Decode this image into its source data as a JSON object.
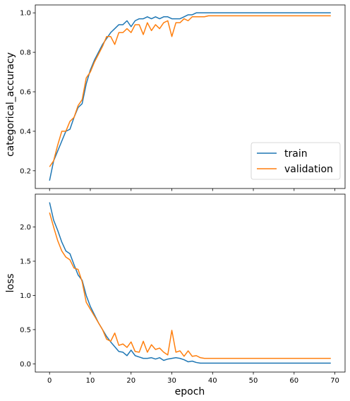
{
  "chart_data": [
    {
      "type": "line",
      "title": "",
      "xlabel": "",
      "ylabel": "categorical_accuracy",
      "xlim": [
        -3.5,
        72.5
      ],
      "ylim": [
        0.11,
        1.04
      ],
      "xticks": [
        0,
        10,
        20,
        30,
        40,
        50,
        60,
        70
      ],
      "xtick_labels_shown": false,
      "yticks": [
        0.2,
        0.4,
        0.6,
        0.8,
        1.0
      ],
      "ytick_labels": [
        "0.2",
        "0.4",
        "0.6",
        "0.8",
        "1.0"
      ],
      "grid": false,
      "legend": "lower-right",
      "series": [
        {
          "name": "train",
          "color": "#1f77b4",
          "x": [
            0,
            1,
            2,
            3,
            4,
            5,
            6,
            7,
            8,
            9,
            10,
            11,
            12,
            13,
            14,
            15,
            16,
            17,
            18,
            19,
            20,
            21,
            22,
            23,
            24,
            25,
            26,
            27,
            28,
            29,
            30,
            31,
            32,
            33,
            34,
            35,
            36,
            37,
            38,
            39,
            40,
            41,
            42,
            43,
            44,
            45,
            46,
            47,
            48,
            49,
            50,
            51,
            52,
            53,
            54,
            55,
            56,
            57,
            58,
            59,
            60,
            61,
            62,
            63,
            64,
            65,
            66,
            67,
            68,
            69
          ],
          "values": [
            0.15,
            0.25,
            0.3,
            0.35,
            0.4,
            0.41,
            0.47,
            0.52,
            0.54,
            0.64,
            0.71,
            0.76,
            0.8,
            0.84,
            0.87,
            0.9,
            0.92,
            0.94,
            0.94,
            0.96,
            0.93,
            0.96,
            0.97,
            0.97,
            0.98,
            0.97,
            0.98,
            0.97,
            0.98,
            0.98,
            0.97,
            0.97,
            0.97,
            0.98,
            0.99,
            0.99,
            1.0,
            1.0,
            1.0,
            1.0,
            1.0,
            1.0,
            1.0,
            1.0,
            1.0,
            1.0,
            1.0,
            1.0,
            1.0,
            1.0,
            1.0,
            1.0,
            1.0,
            1.0,
            1.0,
            1.0,
            1.0,
            1.0,
            1.0,
            1.0,
            1.0,
            1.0,
            1.0,
            1.0,
            1.0,
            1.0,
            1.0,
            1.0,
            1.0,
            1.0
          ]
        },
        {
          "name": "validation",
          "color": "#ff7f0e",
          "x": [
            0,
            1,
            2,
            3,
            4,
            5,
            6,
            7,
            8,
            9,
            10,
            11,
            12,
            13,
            14,
            15,
            16,
            17,
            18,
            19,
            20,
            21,
            22,
            23,
            24,
            25,
            26,
            27,
            28,
            29,
            30,
            31,
            32,
            33,
            34,
            35,
            36,
            37,
            38,
            39,
            40,
            41,
            42,
            43,
            44,
            45,
            46,
            47,
            48,
            49,
            50,
            51,
            52,
            53,
            54,
            55,
            56,
            57,
            58,
            59,
            60,
            61,
            62,
            63,
            64,
            65,
            66,
            67,
            68,
            69
          ],
          "values": [
            0.22,
            0.25,
            0.33,
            0.4,
            0.4,
            0.45,
            0.47,
            0.53,
            0.56,
            0.67,
            0.7,
            0.75,
            0.79,
            0.83,
            0.88,
            0.88,
            0.84,
            0.9,
            0.9,
            0.92,
            0.9,
            0.94,
            0.94,
            0.89,
            0.95,
            0.91,
            0.94,
            0.92,
            0.95,
            0.96,
            0.88,
            0.95,
            0.95,
            0.97,
            0.96,
            0.98,
            0.98,
            0.98,
            0.98,
            0.985,
            0.985,
            0.985,
            0.985,
            0.985,
            0.985,
            0.985,
            0.985,
            0.985,
            0.985,
            0.985,
            0.985,
            0.985,
            0.985,
            0.985,
            0.985,
            0.985,
            0.985,
            0.985,
            0.985,
            0.985,
            0.985,
            0.985,
            0.985,
            0.985,
            0.985,
            0.985,
            0.985,
            0.985,
            0.985,
            0.985
          ]
        }
      ]
    },
    {
      "type": "line",
      "title": "",
      "xlabel": "epoch",
      "ylabel": "loss",
      "xlim": [
        -3.5,
        72.5
      ],
      "ylim": [
        -0.12,
        2.48
      ],
      "xticks": [
        0,
        10,
        20,
        30,
        40,
        50,
        60,
        70
      ],
      "xtick_labels": [
        "0",
        "10",
        "20",
        "30",
        "40",
        "50",
        "60",
        "70"
      ],
      "yticks": [
        0.0,
        0.5,
        1.0,
        1.5,
        2.0
      ],
      "ytick_labels": [
        "0.0",
        "0.5",
        "1.0",
        "1.5",
        "2.0"
      ],
      "grid": false,
      "legend": "none",
      "series": [
        {
          "name": "",
          "color": "#1f77b4",
          "x": [
            0,
            1,
            2,
            3,
            4,
            5,
            6,
            7,
            8,
            9,
            10,
            11,
            12,
            13,
            14,
            15,
            16,
            17,
            18,
            19,
            20,
            21,
            22,
            23,
            24,
            25,
            26,
            27,
            28,
            29,
            30,
            31,
            32,
            33,
            34,
            35,
            36,
            37,
            38,
            39,
            40,
            41,
            42,
            43,
            44,
            45,
            46,
            47,
            48,
            49,
            50,
            51,
            52,
            53,
            54,
            55,
            56,
            57,
            58,
            59,
            60,
            61,
            62,
            63,
            64,
            65,
            66,
            67,
            68,
            69
          ],
          "values": [
            2.36,
            2.1,
            1.95,
            1.78,
            1.65,
            1.61,
            1.45,
            1.3,
            1.22,
            1.0,
            0.84,
            0.72,
            0.6,
            0.5,
            0.4,
            0.32,
            0.25,
            0.18,
            0.17,
            0.12,
            0.2,
            0.12,
            0.1,
            0.08,
            0.08,
            0.09,
            0.07,
            0.09,
            0.05,
            0.07,
            0.08,
            0.09,
            0.08,
            0.06,
            0.03,
            0.04,
            0.02,
            0.01,
            0.01,
            0.01,
            0.01,
            0.01,
            0.01,
            0.01,
            0.01,
            0.01,
            0.01,
            0.01,
            0.01,
            0.01,
            0.01,
            0.01,
            0.01,
            0.01,
            0.01,
            0.01,
            0.01,
            0.01,
            0.01,
            0.01,
            0.01,
            0.01,
            0.01,
            0.01,
            0.01,
            0.01,
            0.01,
            0.01,
            0.01,
            0.01
          ]
        },
        {
          "name": "",
          "color": "#ff7f0e",
          "x": [
            0,
            1,
            2,
            3,
            4,
            5,
            6,
            7,
            8,
            9,
            10,
            11,
            12,
            13,
            14,
            15,
            16,
            17,
            18,
            19,
            20,
            21,
            22,
            23,
            24,
            25,
            26,
            27,
            28,
            29,
            30,
            31,
            32,
            33,
            34,
            35,
            36,
            37,
            38,
            39,
            40,
            41,
            42,
            43,
            44,
            45,
            46,
            47,
            48,
            49,
            50,
            51,
            52,
            53,
            54,
            55,
            56,
            57,
            58,
            59,
            60,
            61,
            62,
            63,
            64,
            65,
            66,
            67,
            68,
            69
          ],
          "values": [
            2.21,
            2.0,
            1.8,
            1.65,
            1.56,
            1.52,
            1.4,
            1.38,
            1.2,
            0.9,
            0.8,
            0.7,
            0.6,
            0.5,
            0.36,
            0.33,
            0.45,
            0.27,
            0.29,
            0.24,
            0.32,
            0.18,
            0.17,
            0.33,
            0.17,
            0.28,
            0.21,
            0.23,
            0.17,
            0.13,
            0.49,
            0.17,
            0.19,
            0.11,
            0.19,
            0.11,
            0.12,
            0.09,
            0.08,
            0.08,
            0.08,
            0.08,
            0.08,
            0.08,
            0.08,
            0.08,
            0.08,
            0.08,
            0.08,
            0.08,
            0.08,
            0.08,
            0.08,
            0.08,
            0.08,
            0.08,
            0.08,
            0.08,
            0.08,
            0.08,
            0.08,
            0.08,
            0.08,
            0.08,
            0.08,
            0.08,
            0.08,
            0.08,
            0.08,
            0.08
          ]
        }
      ]
    }
  ]
}
